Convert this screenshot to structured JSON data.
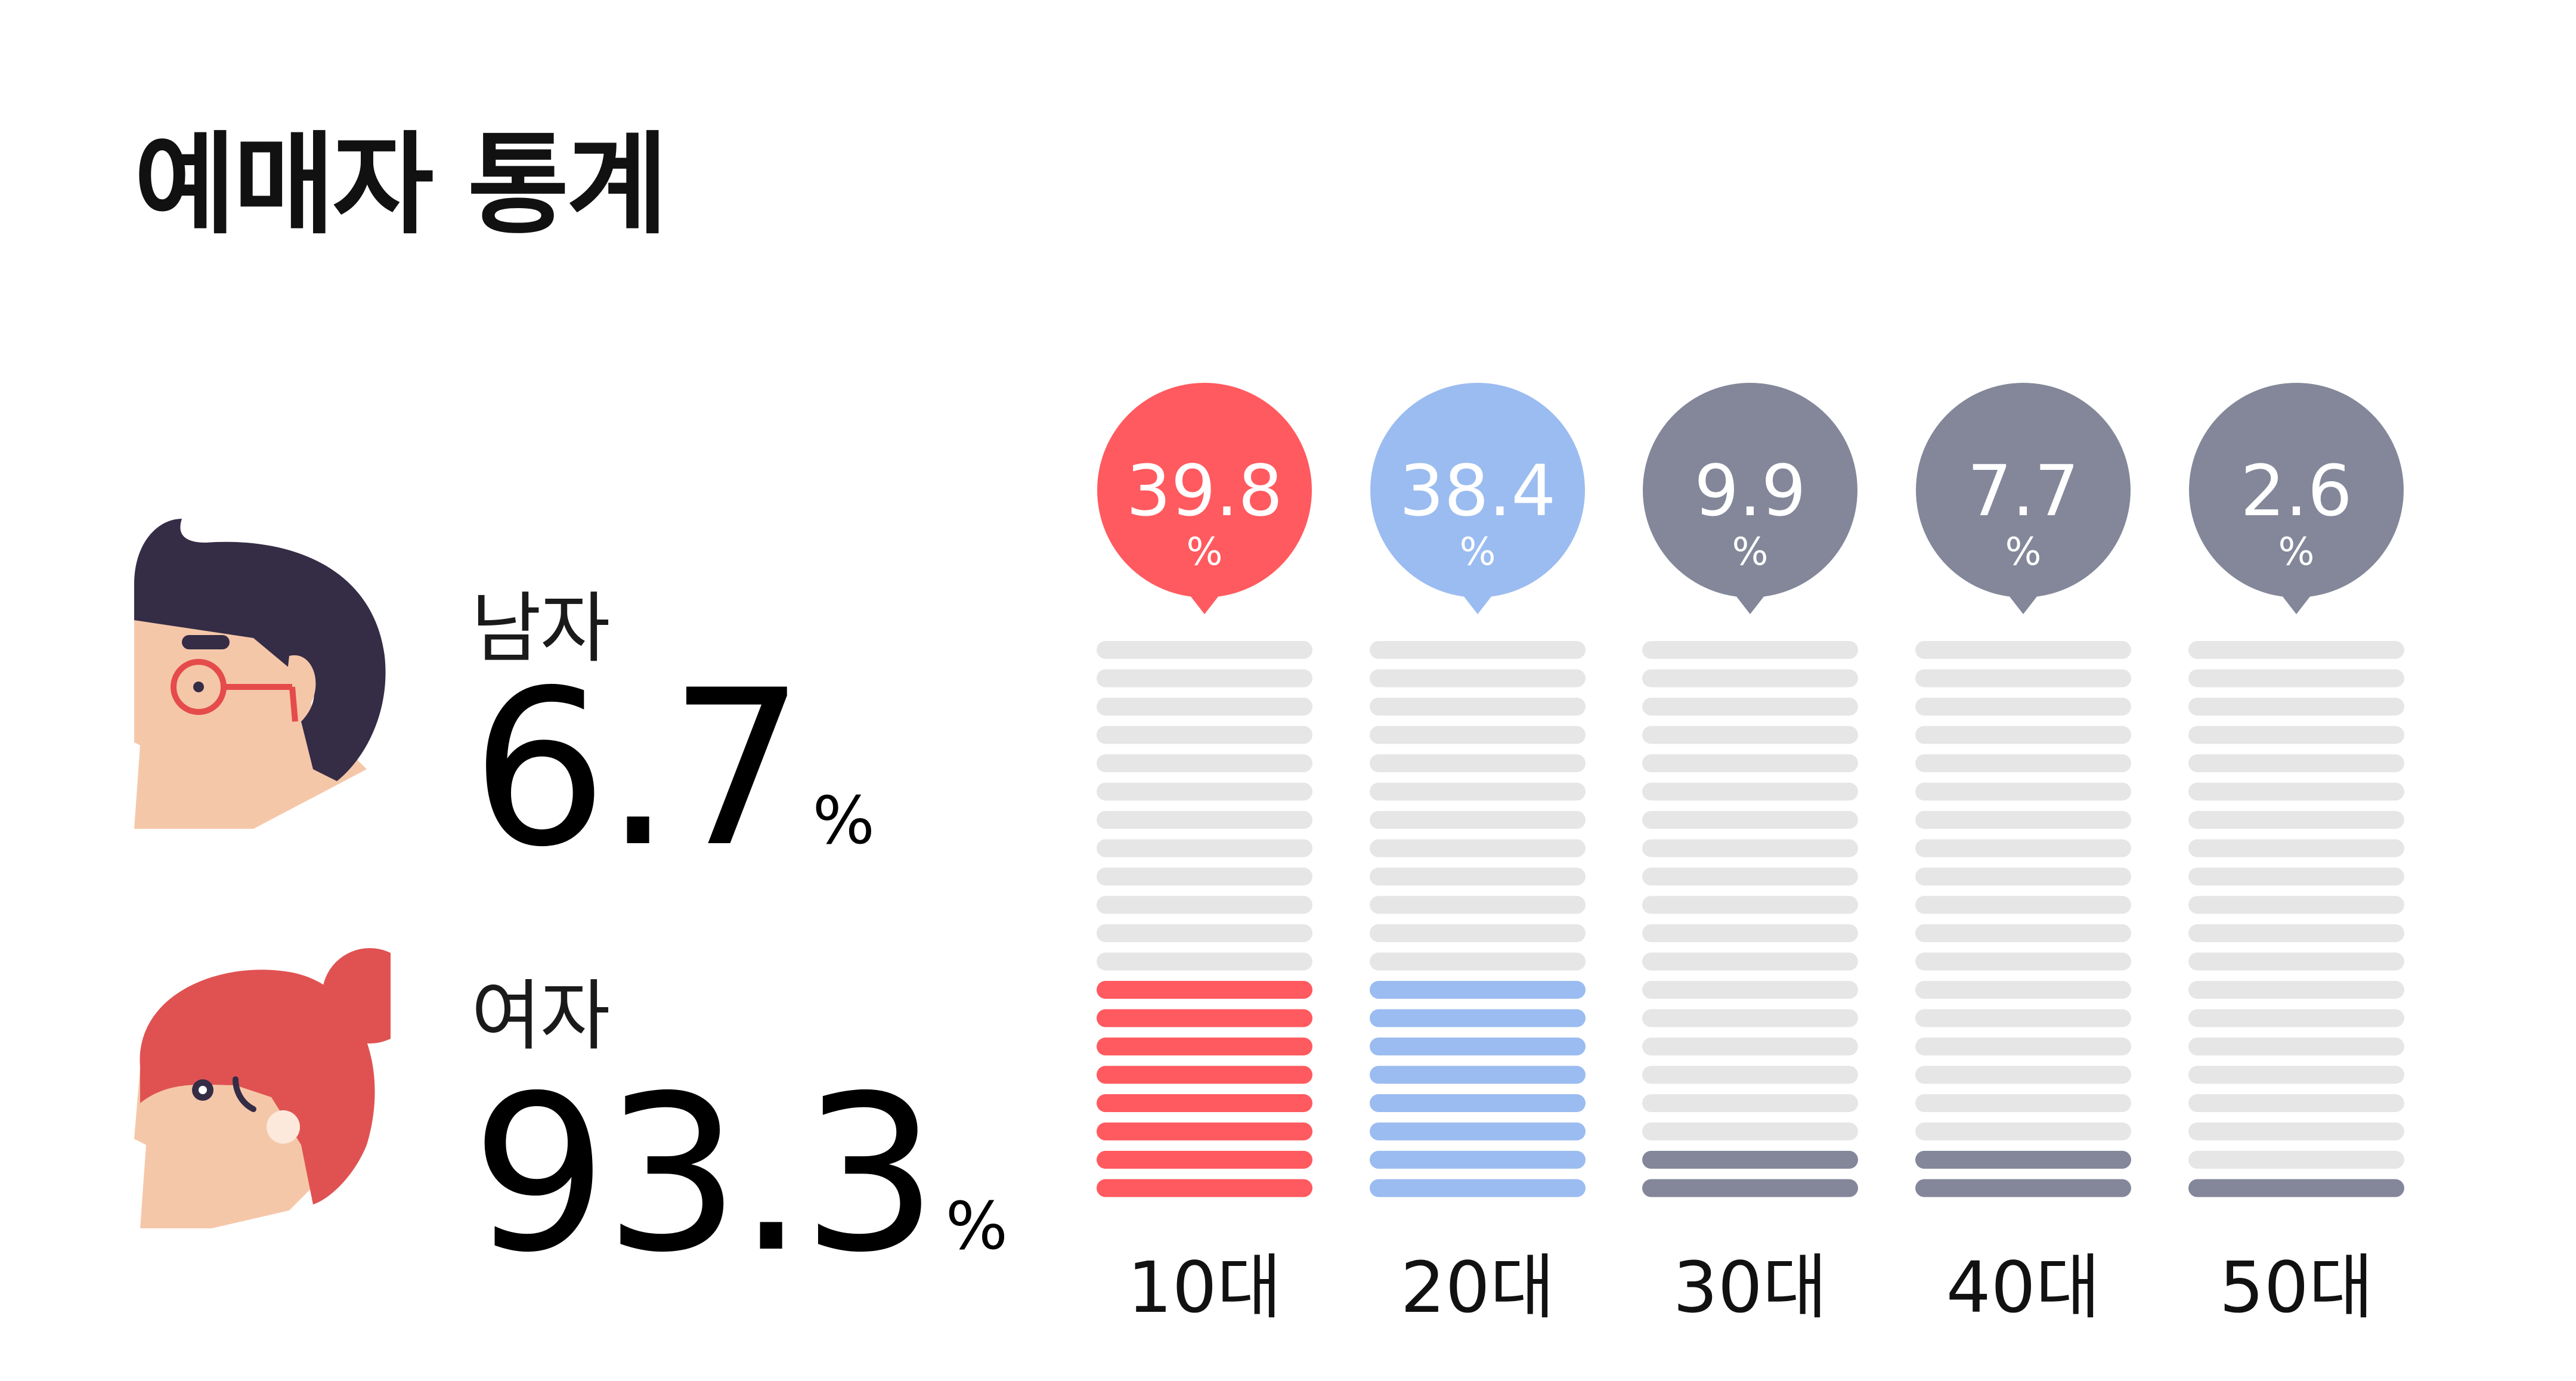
{
  "title": "예매자 통계",
  "gender": {
    "male": {
      "label": "남자",
      "value": "6.7",
      "unit": "%",
      "icon": "male-avatar-icon"
    },
    "female": {
      "label": "여자",
      "value": "93.3",
      "unit": "%",
      "icon": "female-avatar-icon"
    }
  },
  "chart_data": {
    "type": "bar",
    "categories": [
      "10대",
      "20대",
      "30대",
      "40대",
      "50대"
    ],
    "values": [
      39.8,
      38.4,
      9.9,
      7.7,
      2.6
    ],
    "unit": "%",
    "title": "",
    "xlabel": "",
    "ylabel": "",
    "ylim": [
      0,
      100
    ],
    "colors": [
      "#ff5a5f",
      "#9bbcf0",
      "#838799",
      "#838799",
      "#838799"
    ],
    "track_color": "#e6e6e6",
    "filled_segments": [
      8,
      8,
      2,
      2,
      1
    ],
    "total_segments": 20
  }
}
